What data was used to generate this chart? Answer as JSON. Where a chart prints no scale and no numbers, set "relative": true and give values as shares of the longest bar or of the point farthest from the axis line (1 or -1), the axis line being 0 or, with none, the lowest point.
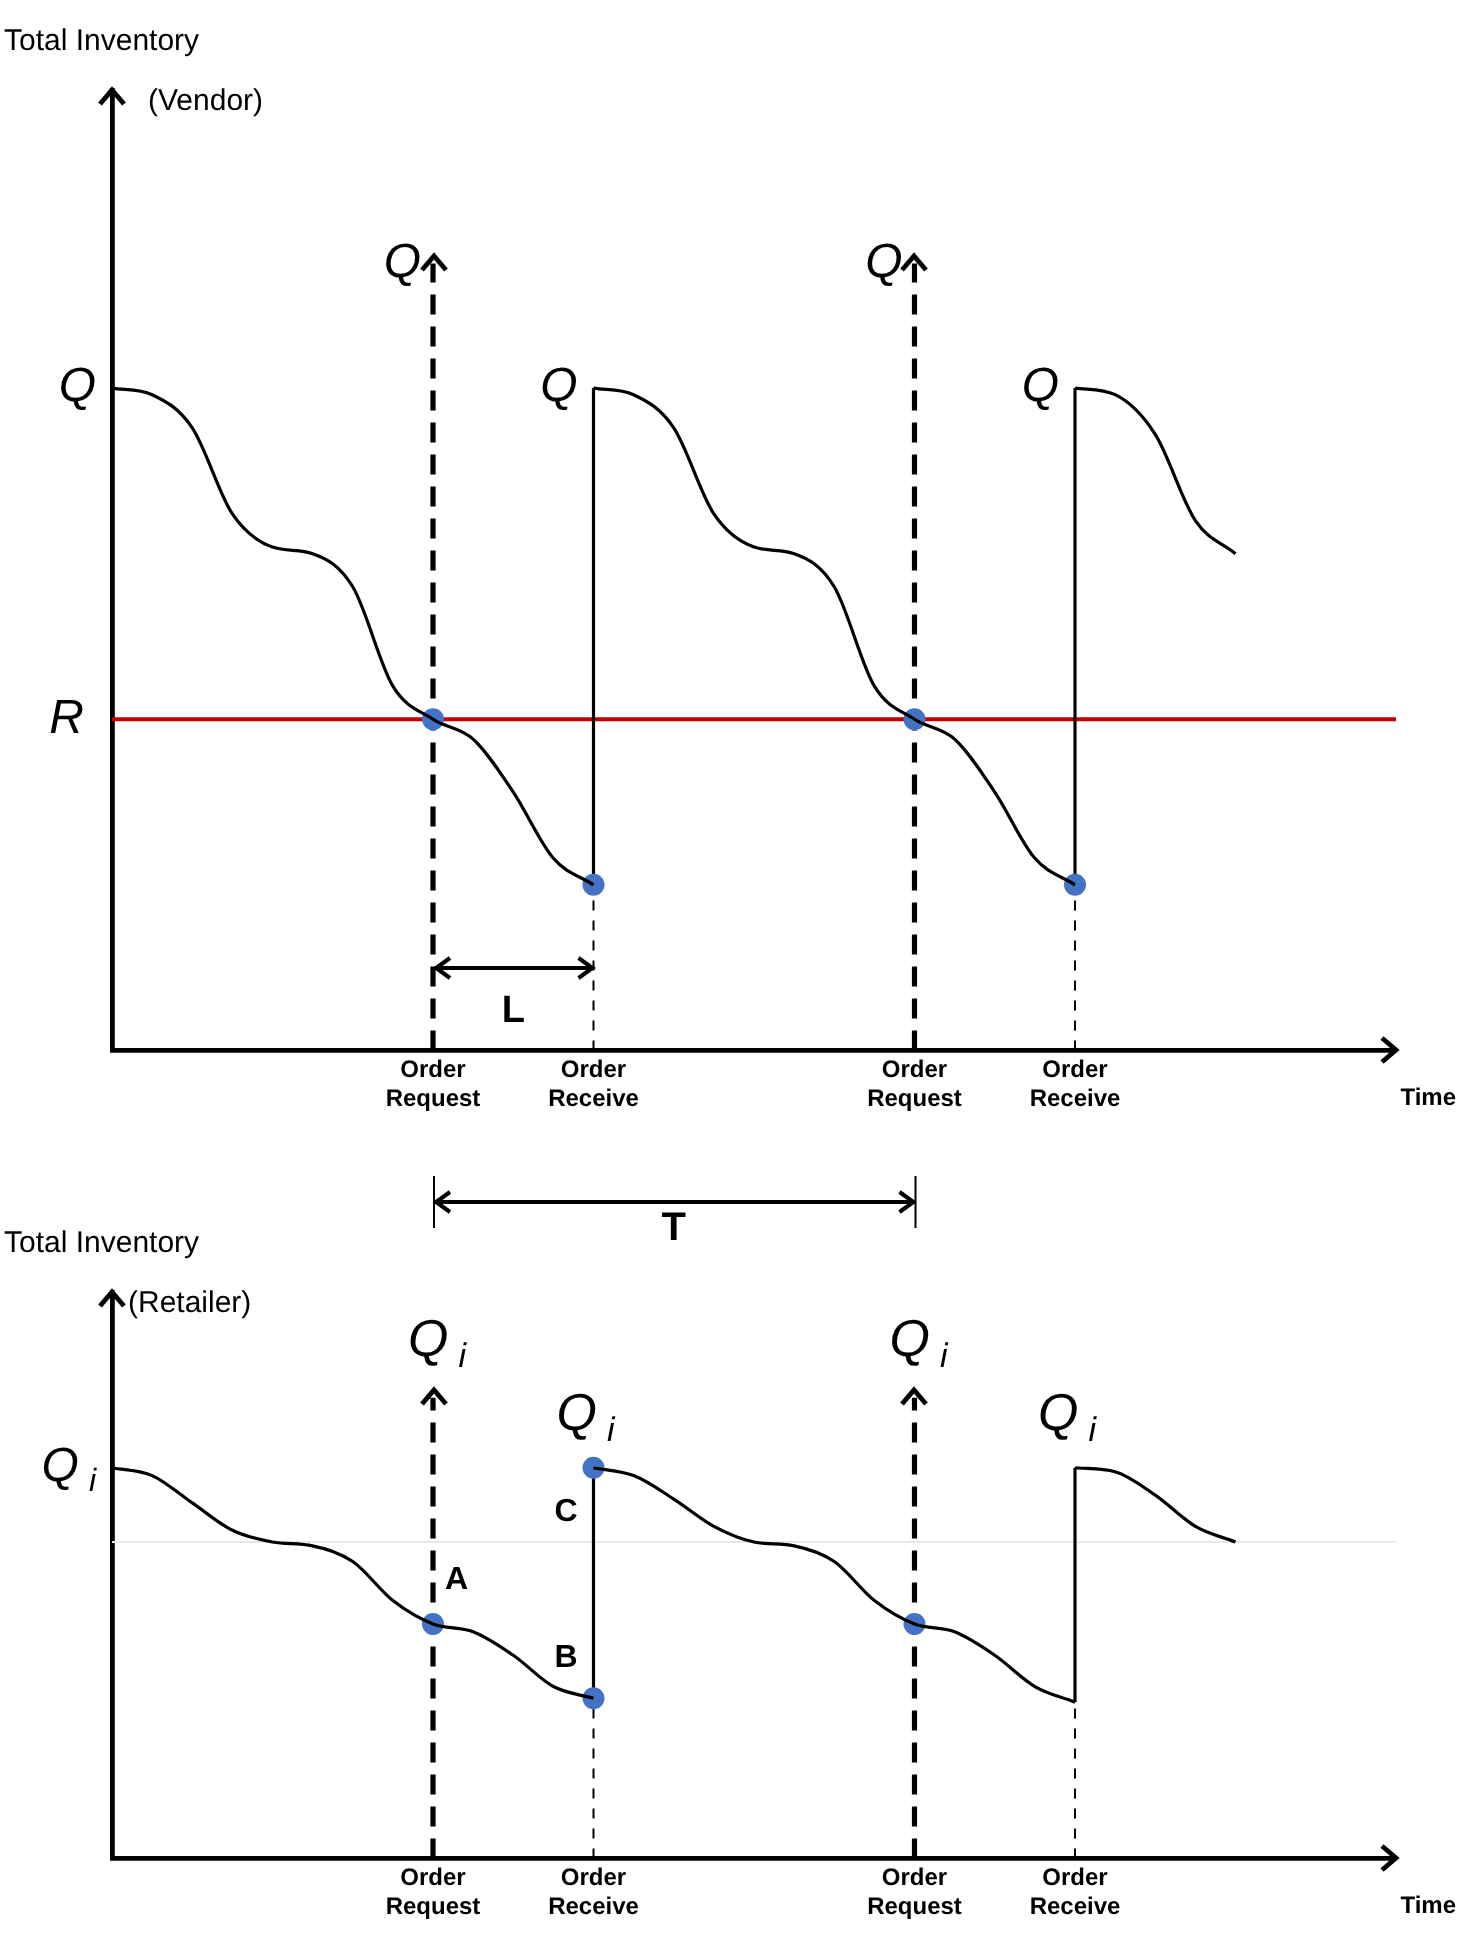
{
  "chart_data": [
    {
      "type": "line",
      "ylabel": "Total Inventory (Vendor)",
      "xlabel": "Time",
      "relative": true,
      "categories": [
        null,
        null,
        null,
        null,
        null,
        null,
        null,
        null,
        "Order Request",
        null,
        null,
        null,
        "Order Receive",
        null,
        null,
        null,
        null,
        null,
        null,
        null,
        "Order Request",
        null,
        null,
        null,
        "Order Receive",
        null,
        null,
        null,
        null,
        null,
        null,
        null,
        null
      ],
      "grid": "x",
      "legend": false,
      "series": [
        {
          "type": "line",
          "color": "#000000",
          "marker": "none",
          "line_style": "solid",
          "values": [
            1,
            0.99,
            0.94,
            0.81,
            0.76,
            0.75,
            0.7,
            0.55,
            0.5,
            0.47,
            0.39,
            0.29,
            0.25,
            null,
            null,
            null,
            null,
            null,
            null,
            null,
            null,
            null,
            null,
            null,
            null,
            null,
            null,
            null,
            null,
            null,
            null,
            null,
            null
          ]
        },
        {
          "type": "line",
          "color": "#000000",
          "marker": "none",
          "line_style": "solid",
          "values": [
            null,
            null,
            null,
            null,
            null,
            null,
            null,
            null,
            null,
            null,
            null,
            null,
            1,
            0.99,
            0.94,
            0.81,
            0.76,
            0.75,
            0.7,
            0.55,
            0.5,
            0.47,
            0.39,
            0.29,
            0.25,
            null,
            null,
            null,
            null,
            null,
            null,
            null,
            null
          ]
        },
        {
          "type": "line",
          "color": "#000000",
          "marker": "none",
          "line_style": "solid",
          "values": [
            null,
            null,
            null,
            null,
            null,
            null,
            null,
            null,
            null,
            null,
            null,
            null,
            null,
            null,
            null,
            null,
            null,
            null,
            null,
            null,
            null,
            null,
            null,
            null,
            1,
            0.99,
            0.93,
            0.8,
            0.75,
            null,
            null,
            null,
            null
          ]
        },
        {
          "type": "scatter",
          "color": "#4472c4",
          "marker": "circle",
          "values": [
            null,
            null,
            null,
            null,
            null,
            null,
            null,
            null,
            0.5,
            null,
            null,
            null,
            0.25,
            null,
            null,
            null,
            null,
            null,
            null,
            null,
            0.5,
            null,
            null,
            null,
            0.25,
            null,
            null,
            null,
            null,
            null,
            null,
            null,
            null
          ]
        }
      ],
      "ref_lines": [
        {
          "axis": "y",
          "value": 0.5,
          "label": "R",
          "line_style": "solid",
          "color": "#c00000"
        }
      ],
      "annotations": [
        "Q",
        "Q",
        "Q",
        "Q",
        "Q",
        "L",
        "T"
      ]
    },
    {
      "type": "line",
      "ylabel": "Total Inventory (Retailer)",
      "xlabel": "Time",
      "relative": true,
      "categories": [
        null,
        null,
        null,
        null,
        null,
        null,
        null,
        null,
        "Order Request",
        null,
        null,
        null,
        "Order Receive",
        null,
        null,
        null,
        null,
        null,
        null,
        null,
        "Order Request",
        null,
        null,
        null,
        "Order Receive",
        null,
        null,
        null,
        null,
        null,
        null,
        null,
        null
      ],
      "grid": "x",
      "legend": false,
      "series": [
        {
          "type": "line",
          "color": "#000000",
          "marker": "none",
          "line_style": "solid",
          "values": [
            1,
            0.98,
            0.91,
            0.84,
            0.81,
            0.8,
            0.76,
            0.66,
            0.6,
            0.58,
            0.52,
            0.44,
            0.41,
            null,
            null,
            null,
            null,
            null,
            null,
            null,
            null,
            null,
            null,
            null,
            null,
            null,
            null,
            null,
            null,
            null,
            null,
            null,
            null
          ]
        },
        {
          "type": "line",
          "color": "#000000",
          "marker": "none",
          "line_style": "solid",
          "values": [
            null,
            null,
            null,
            null,
            null,
            null,
            null,
            null,
            null,
            null,
            null,
            null,
            1,
            0.98,
            0.92,
            0.85,
            0.81,
            0.8,
            0.76,
            0.66,
            0.6,
            0.58,
            0.52,
            0.44,
            0.4,
            null,
            null,
            null,
            null,
            null,
            null,
            null,
            null
          ]
        },
        {
          "type": "line",
          "color": "#000000",
          "marker": "none",
          "line_style": "solid",
          "values": [
            null,
            null,
            null,
            null,
            null,
            null,
            null,
            null,
            null,
            null,
            null,
            null,
            null,
            null,
            null,
            null,
            null,
            null,
            null,
            null,
            null,
            null,
            null,
            null,
            1,
            0.99,
            0.93,
            0.85,
            0.81,
            null,
            null,
            null,
            null
          ]
        },
        {
          "type": "scatter",
          "color": "#4472c4",
          "marker": "circle",
          "values": [
            null,
            null,
            null,
            null,
            null,
            null,
            null,
            null,
            0.6,
            null,
            null,
            null,
            0.41,
            null,
            null,
            null,
            null,
            null,
            null,
            null,
            0.6,
            null,
            null,
            null,
            null,
            null,
            null,
            null,
            null,
            null,
            null,
            null,
            null
          ]
        },
        {
          "type": "scatter",
          "color": "#4472c4",
          "marker": "circle",
          "values": [
            null,
            null,
            null,
            null,
            null,
            null,
            null,
            null,
            null,
            null,
            null,
            null,
            1,
            null,
            null,
            null,
            null,
            null,
            null,
            null,
            null,
            null,
            null,
            null,
            null,
            null,
            null,
            null,
            null,
            null,
            null,
            null,
            null
          ]
        }
      ],
      "ref_lines": [
        {
          "axis": "y",
          "value": 0.81,
          "line_style": "solid",
          "color": "#e8e8e8"
        }
      ],
      "annotations": [
        "Q$_{i}$",
        "Q$_{i}$",
        "Q$_{i}$",
        "Q$_{i}$",
        "Q$_{i}$",
        {
          "text": "A",
          "x": "Order Request",
          "y": 0.6
        },
        {
          "text": "B",
          "x": "Order Receive",
          "y": 0.41
        },
        {
          "text": "C",
          "x": "Order Receive",
          "y": 1
        }
      ]
    }
  ]
}
